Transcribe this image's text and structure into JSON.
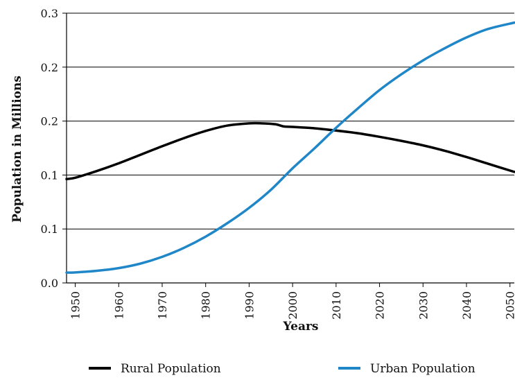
{
  "chart_data": {
    "type": "line",
    "xlabel": "Years",
    "ylabel": "Population in Millions",
    "x_ticks": [
      "1950",
      "1960",
      "1970",
      "1980",
      "1990",
      "2000",
      "2010",
      "2020",
      "2030",
      "2040",
      "2050"
    ],
    "y_ticks": [
      "0.0",
      "0.1",
      "0.1",
      "0.2",
      "0.2",
      "0.3"
    ],
    "xlim": [
      1948,
      2051
    ],
    "ylim": [
      0,
      0.3
    ],
    "grid": "horizontal",
    "legend_position": "bottom",
    "series": [
      {
        "name": "Rural Population",
        "color": "#000000",
        "x": [
          1948,
          1950,
          1955,
          1960,
          1965,
          1970,
          1975,
          1980,
          1985,
          1990,
          1993,
          1996,
          1998,
          2000,
          2005,
          2010,
          2015,
          2020,
          2025,
          2030,
          2035,
          2040,
          2045,
          2051
        ],
        "y": [
          0.1155,
          0.117,
          0.1245,
          0.133,
          0.1425,
          0.152,
          0.161,
          0.169,
          0.175,
          0.1775,
          0.1775,
          0.1765,
          0.174,
          0.1735,
          0.172,
          0.1695,
          0.1665,
          0.1625,
          0.158,
          0.153,
          0.147,
          0.14,
          0.1325,
          0.1235
        ]
      },
      {
        "name": "Urban Population",
        "color": "#1f86c8",
        "x": [
          1948,
          1950,
          1955,
          1960,
          1965,
          1970,
          1975,
          1980,
          1985,
          1990,
          1995,
          2000,
          2005,
          2010,
          2015,
          2020,
          2025,
          2030,
          2035,
          2040,
          2045,
          2051
        ],
        "y": [
          0.0115,
          0.0117,
          0.0135,
          0.0165,
          0.0215,
          0.029,
          0.039,
          0.0515,
          0.0665,
          0.0835,
          0.1035,
          0.1275,
          0.1495,
          0.1725,
          0.194,
          0.2145,
          0.232,
          0.2475,
          0.261,
          0.273,
          0.2825,
          0.2895
        ]
      }
    ]
  }
}
